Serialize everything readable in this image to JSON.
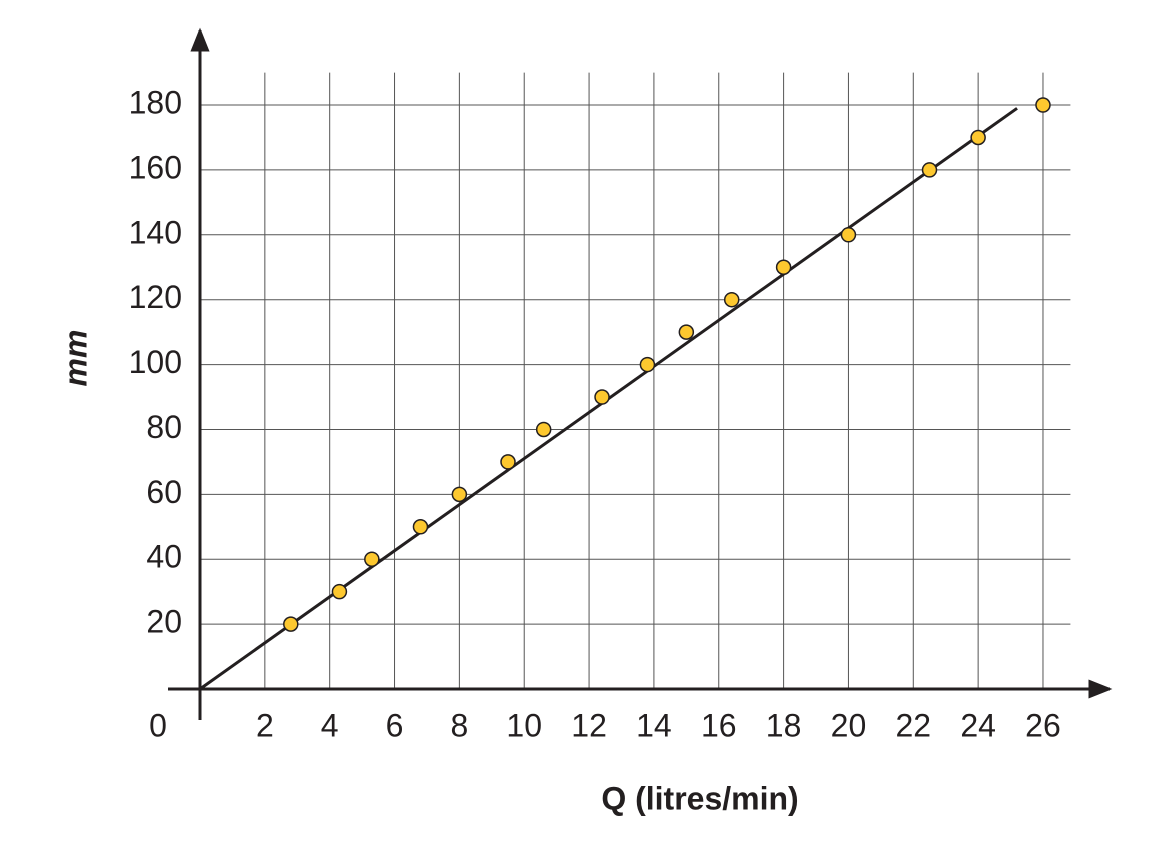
{
  "chart_data": {
    "type": "scatter",
    "x_label": "Q (litres/min)",
    "y_label": "mm",
    "xlim": [
      0,
      27
    ],
    "ylim": [
      0,
      190
    ],
    "xticks": [
      0,
      2,
      4,
      6,
      8,
      10,
      12,
      14,
      16,
      18,
      20,
      22,
      24,
      26
    ],
    "yticks": [
      20,
      40,
      60,
      80,
      100,
      120,
      140,
      160,
      180
    ],
    "grid": true,
    "points": {
      "color": "#fdc82f",
      "x": [
        2.8,
        4.3,
        5.3,
        6.8,
        8,
        9.5,
        10.6,
        12.4,
        13.8,
        15,
        16.4,
        18,
        20,
        22.5,
        24,
        26
      ],
      "y": [
        20,
        30,
        40,
        50,
        60,
        70,
        80,
        90,
        100,
        110,
        120,
        130,
        140,
        160,
        170,
        180
      ]
    },
    "fit_line": {
      "color": "#231f20",
      "x": [
        0,
        25.2
      ],
      "y": [
        0,
        179
      ]
    }
  }
}
